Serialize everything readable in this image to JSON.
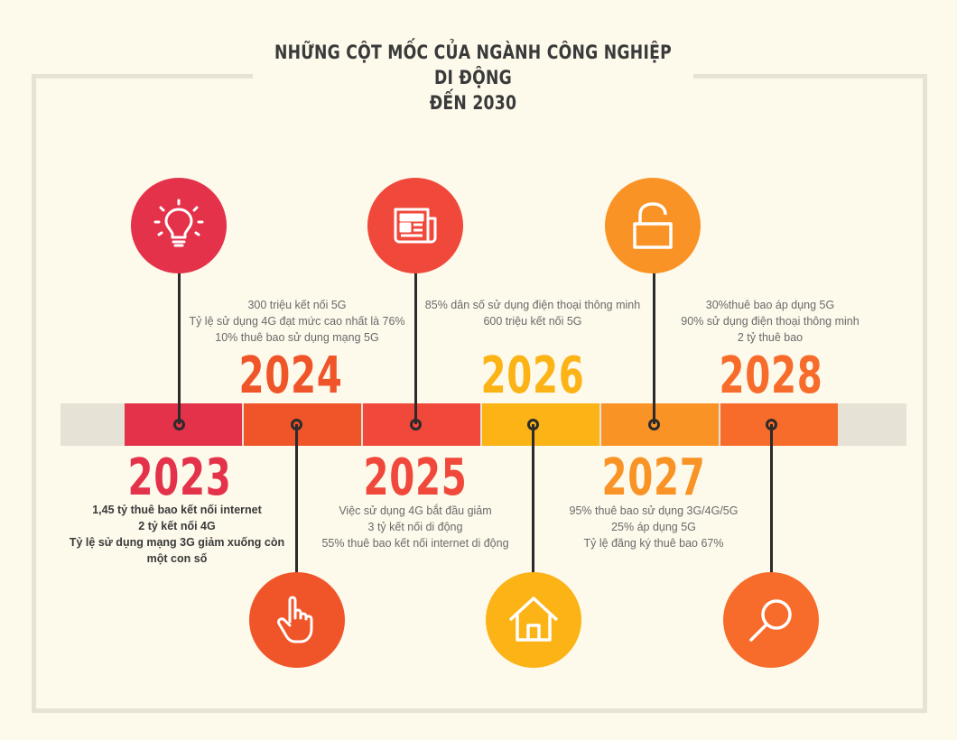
{
  "title": {
    "line1": "NHỮNG CỘT MỐC CỦA NGÀNH CÔNG NGHIỆP DI ĐỘNG",
    "line2": "ĐẾN 2030"
  },
  "colors": {
    "background": "#fdf9eb",
    "track": "#e6e2d6",
    "y2023": "#e3324a",
    "y2024": "#f05429",
    "y2025": "#f0483a",
    "y2026": "#fbb316",
    "y2027": "#f99325",
    "y2028": "#f76b2b"
  },
  "milestones": [
    {
      "year": "2023",
      "icon": "lightbulb-icon",
      "lines": [
        "1,45 tỷ thuê bao kết nối internet",
        "2 tỷ kết nối 4G",
        "Tỷ lệ sử dụng mạng 3G giảm xuống còn",
        "một con số"
      ]
    },
    {
      "year": "2024",
      "icon": "pointing-hand-icon",
      "lines": [
        "300 triệu kết nối 5G",
        "Tỷ lệ sử dụng 4G đạt mức cao nhất là 76%",
        "10% thuê bao sử dụng mạng 5G"
      ]
    },
    {
      "year": "2025",
      "icon": "newspaper-icon",
      "lines": [
        "Việc sử dụng 4G bắt đầu giảm",
        "3 tỷ kết nối di động",
        "55% thuê bao kết nối internet di động"
      ]
    },
    {
      "year": "2026",
      "icon": "home-icon",
      "lines": [
        "85% dân số sử dụng điện thoại thông minh",
        "600 triệu kết nối 5G"
      ]
    },
    {
      "year": "2027",
      "icon": "unlocked-padlock-icon",
      "lines": [
        "95% thuê bao sử dụng 3G/4G/5G",
        "25% áp dụng 5G",
        "Tỷ lệ đăng ký thuê bao 67%"
      ]
    },
    {
      "year": "2028",
      "icon": "magnifier-icon",
      "lines": [
        "30%thuê bao áp dụng 5G",
        "90% sử dụng điện thoại thông minh",
        "2 tỷ thuê bao"
      ]
    }
  ]
}
